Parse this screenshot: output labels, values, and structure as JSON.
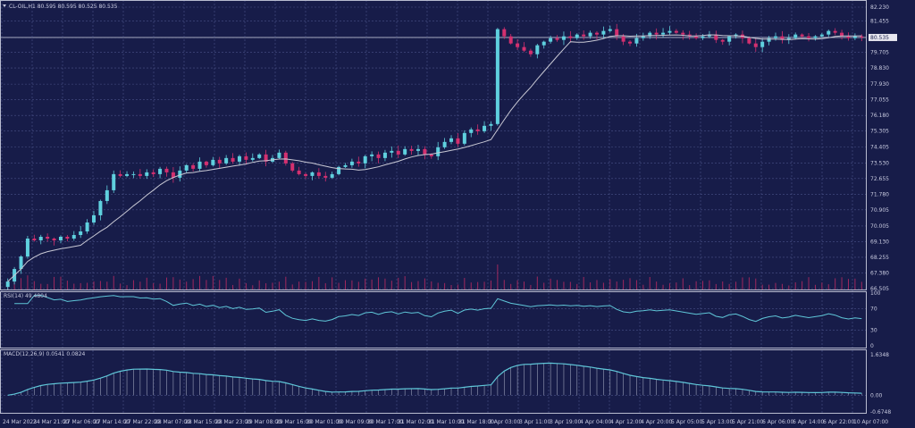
{
  "chart_data": [
    {
      "type": "candlestick",
      "title": "CL-OIL,H1  80.595 80.595 80.525 80.535",
      "symbol": "CL-OIL,H1",
      "ylim": [
        66.505,
        82.23
      ],
      "y_ticks": [
        "82.230",
        "81.455",
        "80.535",
        "79.705",
        "78.830",
        "77.930",
        "77.055",
        "76.180",
        "75.305",
        "74.405",
        "73.530",
        "72.655",
        "71.780",
        "70.905",
        "70.005",
        "69.130",
        "68.255",
        "67.380",
        "66.505"
      ],
      "current_price": 80.535,
      "x_ticks": [
        "24 Mar 2023",
        "24 Mar 21:00",
        "27 Mar 06:00",
        "27 Mar 14:00",
        "27 Mar 22:00",
        "28 Mar 07:00",
        "28 Mar 15:00",
        "28 Mar 23:00",
        "29 Mar 08:00",
        "29 Mar 16:00",
        "30 Mar 01:00",
        "30 Mar 09:00",
        "30 Mar 17:00",
        "31 Mar 02:00",
        "31 Mar 10:00",
        "31 Mar 18:00",
        "3 Apr 03:00",
        "3 Apr 11:00",
        "3 Apr 19:00",
        "4 Apr 04:00",
        "4 Apr 12:00",
        "4 Apr 20:00",
        "5 Apr 05:00",
        "5 Apr 13:00",
        "5 Apr 21:00",
        "6 Apr 06:00",
        "6 Apr 14:00",
        "6 Apr 22:00",
        "10 Apr 07:00"
      ],
      "closes": [
        66.9,
        67.6,
        68.3,
        69.3,
        69.2,
        69.4,
        69.3,
        69.2,
        69.4,
        69.3,
        69.5,
        69.7,
        70.2,
        70.6,
        71.4,
        72.0,
        72.9,
        72.8,
        72.9,
        72.9,
        72.8,
        73.0,
        72.9,
        73.2,
        73.0,
        72.7,
        73.1,
        73.4,
        73.2,
        73.6,
        73.4,
        73.7,
        73.5,
        73.8,
        73.6,
        73.9,
        73.7,
        73.8,
        74.0,
        73.6,
        73.8,
        74.1,
        73.5,
        73.1,
        72.9,
        72.8,
        73.0,
        72.8,
        72.7,
        72.9,
        73.3,
        73.4,
        73.6,
        73.5,
        73.9,
        74.0,
        73.8,
        74.1,
        74.2,
        74.0,
        74.3,
        74.2,
        74.3,
        74.0,
        73.9,
        74.4,
        74.7,
        74.9,
        74.6,
        75.2,
        75.4,
        75.3,
        75.6,
        75.7,
        81.0,
        80.6,
        80.2,
        80.0,
        79.8,
        79.6,
        80.1,
        80.3,
        80.5,
        80.4,
        80.6,
        80.5,
        80.7,
        80.6,
        80.8,
        80.7,
        80.9,
        81.0,
        80.6,
        80.3,
        80.2,
        80.5,
        80.6,
        80.8,
        80.7,
        80.8,
        80.9,
        80.8,
        80.7,
        80.6,
        80.5,
        80.6,
        80.7,
        80.4,
        80.3,
        80.6,
        80.7,
        80.5,
        80.2,
        80.0,
        80.3,
        80.5,
        80.6,
        80.4,
        80.5,
        80.7,
        80.6,
        80.5,
        80.6,
        80.7,
        80.9,
        80.8,
        80.6,
        80.5,
        80.6,
        80.535
      ],
      "colors": {
        "up": "#5fd0de",
        "down": "#d3306f",
        "ma": "#c8c8d4",
        "background": "#171c49",
        "volume": "#a0285e"
      }
    },
    {
      "type": "line",
      "title": "RSI(14) 49.4804",
      "ylim": [
        0,
        100
      ],
      "y_ticks": [
        "100",
        "70",
        "30",
        "0"
      ],
      "color": "#5fc6d8"
    },
    {
      "type": "line+bar",
      "title": "MACD(12,26,9) 0.0541 0.0824",
      "ylim": [
        -0.6748,
        1.6348
      ],
      "y_ticks": [
        "1.6348",
        "0.00",
        "-0.6748"
      ],
      "color": "#5fc6d8"
    }
  ]
}
